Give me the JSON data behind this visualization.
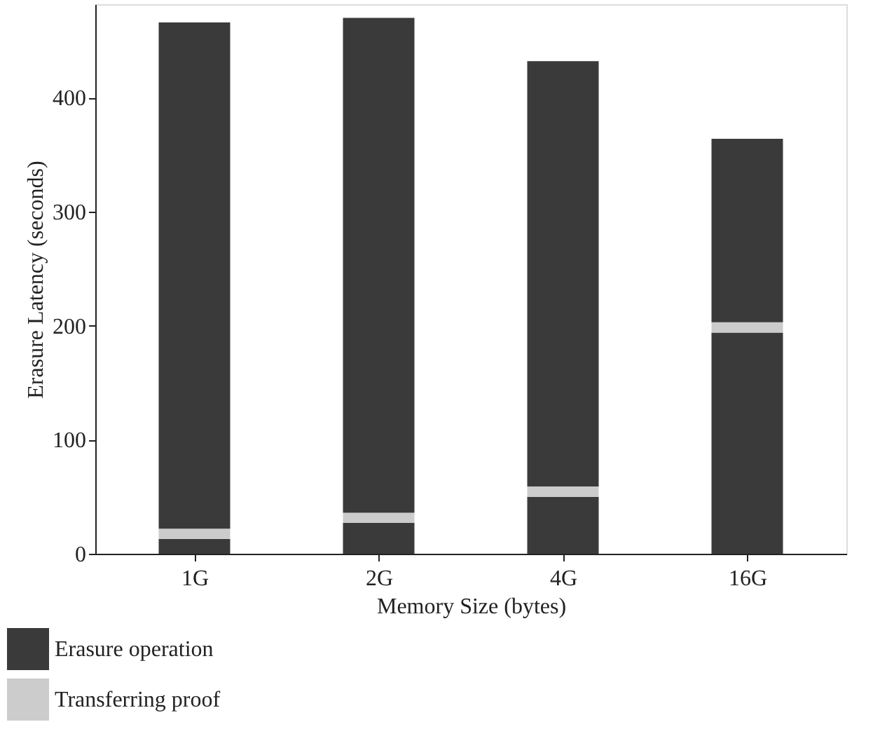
{
  "chart_data": {
    "type": "bar",
    "stacked": true,
    "xlabel": "Memory Size (bytes)",
    "ylabel": "Erasure Latency (seconds)",
    "categories": [
      "1G",
      "2G",
      "4G",
      "16G"
    ],
    "series": [
      {
        "name": "Erasure operation",
        "color": "#3a3a3a",
        "values": [
          13,
          27,
          50,
          194
        ]
      },
      {
        "name": "Transferring proof",
        "color": "#cccccc",
        "values": [
          9,
          9,
          9,
          9
        ]
      },
      {
        "color": "#3a3a3a",
        "values": [
          444,
          434,
          373,
          161
        ]
      }
    ],
    "ylim": [
      0,
      482
    ],
    "yticks": [
      0,
      100,
      200,
      300,
      400
    ],
    "grid": false,
    "legend": "bottom left"
  }
}
